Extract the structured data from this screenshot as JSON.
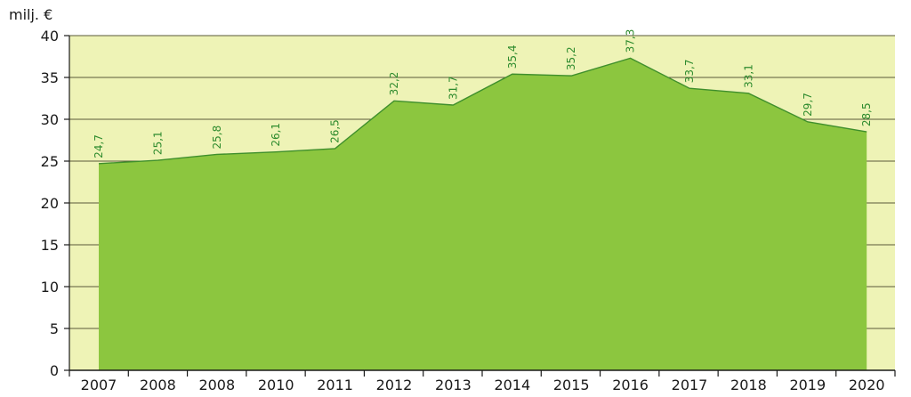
{
  "chart_data": {
    "type": "area",
    "title": "",
    "xlabel": "",
    "ylabel": "milj. €",
    "ylim": [
      0,
      40
    ],
    "yticks": [
      0,
      5,
      10,
      15,
      20,
      25,
      30,
      35,
      40
    ],
    "grid": true,
    "categories": [
      "2007",
      "2008",
      "2008",
      "2010",
      "2011",
      "2012",
      "2013",
      "2014",
      "2015",
      "2016",
      "2017",
      "2018",
      "2019",
      "2020"
    ],
    "values": [
      24.7,
      25.1,
      25.8,
      26.1,
      26.5,
      32.2,
      31.7,
      35.4,
      35.2,
      37.3,
      33.7,
      33.1,
      29.7,
      28.5
    ],
    "data_labels": [
      "24,7",
      "25,1",
      "25,8",
      "26,1",
      "26,5",
      "32,2",
      "31,7",
      "35,4",
      "35,2",
      "37,3",
      "33,7",
      "33,1",
      "29,7",
      "28,5"
    ],
    "colors": {
      "plot_background": "#eef3b6",
      "area_fill": "#8cc63f",
      "area_line": "#3f8f2c",
      "data_label": "#2e8b2e",
      "gridline": "#5a5a3a"
    }
  }
}
